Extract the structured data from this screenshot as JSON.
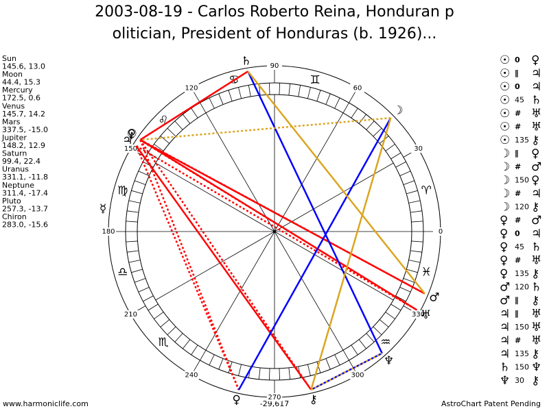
{
  "title_lines": [
    "2003-08-19 - Carlos Roberto Reina, Honduran p",
    "olitician, President of Honduras (b. 1926)..."
  ],
  "planets": [
    {
      "name": "Sun",
      "glyph": "☉",
      "longitude": 145.6,
      "latitude": 13.0,
      "label": "145.6, 13.0"
    },
    {
      "name": "Moon",
      "glyph": "☽",
      "longitude": 44.4,
      "latitude": 15.3,
      "label": "44.4, 15.3"
    },
    {
      "name": "Mercury",
      "glyph": "☿",
      "longitude": 172.5,
      "latitude": 0.6,
      "label": "172.5, 0.6"
    },
    {
      "name": "Venus",
      "glyph": "♀",
      "longitude": 145.7,
      "latitude": 14.2,
      "label": "145.7, 14.2"
    },
    {
      "name": "Mars",
      "glyph": "♂",
      "longitude": 337.5,
      "latitude": -15.0,
      "label": "337.5, -15.0"
    },
    {
      "name": "Jupiter",
      "glyph": "♃",
      "longitude": 148.2,
      "latitude": 12.9,
      "label": "148.2, 12.9"
    },
    {
      "name": "Saturn",
      "glyph": "♄",
      "longitude": 99.4,
      "latitude": 22.4,
      "label": "99.4, 22.4"
    },
    {
      "name": "Uranus",
      "glyph": "♅",
      "longitude": 331.1,
      "latitude": -11.8,
      "label": "331.1, -11.8"
    },
    {
      "name": "Neptune",
      "glyph": "♆",
      "longitude": 311.4,
      "latitude": -17.4,
      "label": "311.4, -17.4"
    },
    {
      "name": "Pluto",
      "glyph": "♀",
      "longitude": 257.3,
      "latitude": -13.7,
      "label": "257.3, -13.7"
    },
    {
      "name": "Chiron",
      "glyph": "⚷",
      "longitude": 283.0,
      "latitude": -15.6,
      "label": "283.0, -15.6"
    }
  ],
  "zodiac": [
    "♈",
    null,
    "♊",
    "♋",
    "♌",
    "♍",
    "♎",
    "♏",
    null,
    null,
    "♒",
    "♓"
  ],
  "degree_labels": [
    0,
    30,
    60,
    90,
    120,
    150,
    180,
    210,
    240,
    270,
    300,
    330
  ],
  "aspects": [
    [
      "☉",
      "0",
      "♀"
    ],
    [
      "☉",
      "∥",
      "♃"
    ],
    [
      "☉",
      "0",
      "♃"
    ],
    [
      "☉",
      "45",
      "♄"
    ],
    [
      "☉",
      "#",
      "♅"
    ],
    [
      "☉",
      "#",
      "♅"
    ],
    [
      "☉",
      "135",
      "⚷"
    ],
    [
      "☽",
      "∥",
      "♀"
    ],
    [
      "☽",
      "#",
      "♂"
    ],
    [
      "☽",
      "150",
      "♀"
    ],
    [
      "☽",
      "#",
      "♃"
    ],
    [
      "☽",
      "120",
      "⚷"
    ],
    [
      "♀",
      "#",
      "♂"
    ],
    [
      "♀",
      "0",
      "♃"
    ],
    [
      "♀",
      "45",
      "♄"
    ],
    [
      "♀",
      "#",
      "♅"
    ],
    [
      "♀",
      "135",
      "⚷"
    ],
    [
      "♂",
      "120",
      "♄"
    ],
    [
      "♂",
      "∥",
      "⚷"
    ],
    [
      "♃",
      "∥",
      "♅"
    ],
    [
      "♃",
      "150",
      "♅"
    ],
    [
      "♃",
      "#",
      "♅"
    ],
    [
      "♃",
      "135",
      "⚷"
    ],
    [
      "♄",
      "150",
      "♆"
    ],
    [
      "♆",
      "30",
      "⚷"
    ]
  ],
  "footer": {
    "left": "www.harmoniclife.com",
    "center": "-29,617",
    "right": "AstroChart Patent Pending"
  }
}
